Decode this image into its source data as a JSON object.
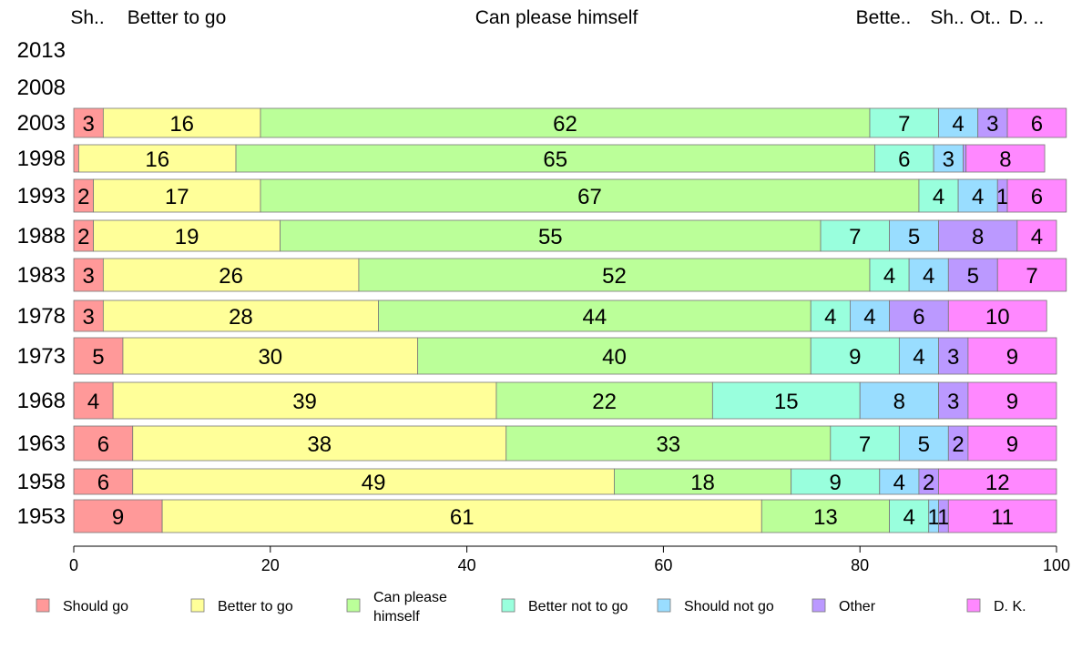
{
  "chart_data": {
    "type": "bar",
    "orientation": "horizontal",
    "stacked": true,
    "categories": [
      "1953",
      "1958",
      "1963",
      "1968",
      "1973",
      "1978",
      "1983",
      "1988",
      "1993",
      "1998",
      "2003",
      "2008",
      "2013"
    ],
    "series": [
      {
        "name": "Should go",
        "color": "#FF9999",
        "values": [
          9,
          6,
          6,
          4,
          5,
          3,
          3,
          2,
          2,
          0.5,
          3,
          null,
          null
        ]
      },
      {
        "name": "Better to go",
        "color": "#FFFF99",
        "values": [
          61,
          49,
          38,
          39,
          30,
          28,
          26,
          19,
          17,
          16,
          16,
          null,
          null
        ]
      },
      {
        "name": "Can please himself",
        "color": "#BBFF99",
        "values": [
          13,
          18,
          33,
          22,
          40,
          44,
          52,
          55,
          67,
          65,
          62,
          null,
          null
        ]
      },
      {
        "name": "Better not to go",
        "color": "#99FFDD",
        "values": [
          4,
          9,
          7,
          15,
          9,
          4,
          4,
          7,
          4,
          6,
          7,
          null,
          null
        ]
      },
      {
        "name": "Should not go",
        "color": "#99DDFF",
        "values": [
          1,
          4,
          5,
          8,
          4,
          4,
          4,
          5,
          4,
          3,
          4,
          null,
          null
        ]
      },
      {
        "name": "Other",
        "color": "#BB99FF",
        "values": [
          1,
          2,
          2,
          3,
          3,
          6,
          5,
          8,
          1,
          0.3,
          3,
          null,
          null
        ]
      },
      {
        "name": "D. K.",
        "color": "#FF88FF",
        "values": [
          11,
          12,
          9,
          9,
          9,
          10,
          7,
          4,
          6,
          8,
          6,
          null,
          null
        ]
      }
    ],
    "data_labels": [
      [
        "9",
        "61",
        "13",
        "4",
        "1",
        "1",
        "11"
      ],
      [
        "6",
        "49",
        "18",
        "9",
        "4",
        "2",
        "12"
      ],
      [
        "6",
        "38",
        "33",
        "7",
        "5",
        "2",
        "9"
      ],
      [
        "4",
        "39",
        "22",
        "15",
        "8",
        "3",
        "9"
      ],
      [
        "5",
        "30",
        "40",
        "9",
        "4",
        "3",
        "9"
      ],
      [
        "3",
        "28",
        "44",
        "4",
        "4",
        "6",
        "10"
      ],
      [
        "3",
        "26",
        "52",
        "4",
        "4",
        "5",
        "7"
      ],
      [
        "2",
        "19",
        "55",
        "7",
        "5",
        "8",
        "4"
      ],
      [
        "2",
        "17",
        "67",
        "4",
        "4",
        "1",
        "6"
      ],
      [
        "",
        "16",
        "65",
        "6",
        "3",
        "",
        "8"
      ],
      [
        "3",
        "16",
        "62",
        "7",
        "4",
        "3",
        "6"
      ],
      [
        "",
        "",
        "",
        "",
        "",
        "",
        ""
      ],
      [
        "",
        "",
        "",
        "",
        "",
        "",
        ""
      ]
    ],
    "top_labels": [
      "Sh..",
      "Better to go",
      "Can please himself",
      "Bette..",
      "Sh..",
      "Ot..",
      "D. .."
    ],
    "legend": [
      "Should go",
      "Better to go",
      "Can please himself",
      "Better not to go",
      "Should not go",
      "Other",
      "D. K."
    ],
    "legend_placement": "bottom",
    "xticks": [
      "0",
      "20",
      "40",
      "60",
      "80",
      "100"
    ],
    "xlim": [
      0,
      100
    ],
    "title": "",
    "xlabel": "",
    "ylabel": "",
    "grid": false
  }
}
